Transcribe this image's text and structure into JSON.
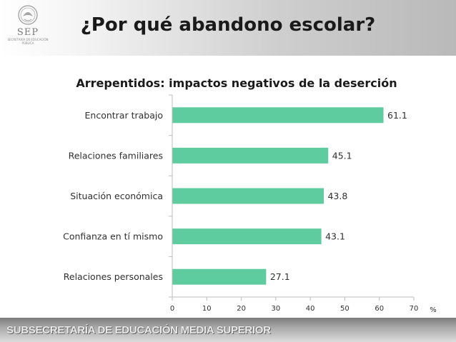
{
  "header": {
    "title": "¿Por qué abandono escolar?",
    "logo_text": "SEP",
    "logo_subtext": "Secretaría de Educación Pública",
    "logo_icon": "coat-of-arms-icon"
  },
  "chart_data": {
    "type": "bar",
    "orientation": "horizontal",
    "title": "Arrepentidos: impactos negativos de la deserción",
    "categories": [
      "Encontrar trabajo",
      "Relaciones familiares",
      "Situación económica",
      "Confianza en tí mismo",
      "Relaciones personales"
    ],
    "values": [
      61.1,
      45.1,
      43.8,
      43.1,
      27.1
    ],
    "value_labels": [
      "61.1",
      "45.1",
      "43.8",
      "43.1",
      "27.1"
    ],
    "xlim": [
      0,
      70
    ],
    "xticks": [
      "0",
      "10",
      "20",
      "30",
      "40",
      "50",
      "60",
      "70"
    ],
    "xlabel": "%",
    "bar_color": "#5ecc9e",
    "grid": false,
    "legend": "none"
  },
  "footer": {
    "text": "SUBSECRETARÍA DE EDUCACIÓN MEDIA SUPERIOR"
  }
}
